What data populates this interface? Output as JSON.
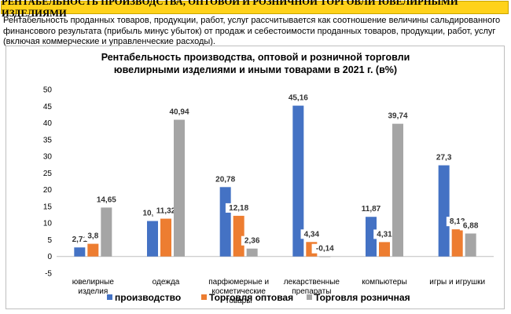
{
  "banner": "РЕНТАБЕЛЬНОСТЬ ПРОИЗВОДСТВА, ОПТОВОЙ И РОЗНИЧНОЙ ТОРГОВЛИ ЮВЕЛИРНЫМИ ИЗДЕЛИЯМИ",
  "intro": "Рентабельность проданных товаров, продукции, работ, услуг рассчитывается как соотношение величины сальдированного финансового результата (прибыль минус убыток) от продаж и себестоимости проданных товаров, продукции, работ, услуг (включая коммерческие и управленческие расходы).",
  "colors": {
    "s0": "#4472c4",
    "s1": "#ed7d31",
    "s2": "#a5a5a5",
    "banner": "#ffd21a"
  },
  "chart_data": {
    "type": "bar",
    "title": [
      "Рентабельность производства, оптовой и розничной торговли",
      "ювелирными изделиями и иными товарами в 2021 г. (в%)"
    ],
    "xlabel": "",
    "ylabel": "",
    "ylim": [
      -5,
      50
    ],
    "yticks": [
      -5,
      0,
      5,
      10,
      15,
      20,
      25,
      30,
      35,
      40,
      45,
      50
    ],
    "grid": false,
    "legend_position": "bottom",
    "categories": [
      [
        "ювелирные",
        "изделия"
      ],
      [
        "одежда"
      ],
      [
        "парфюмерные и",
        "косметические",
        "товары"
      ],
      [
        "лекарственные",
        "препараты"
      ],
      [
        "компьютеры"
      ],
      [
        "игры и игрушки"
      ]
    ],
    "series": [
      {
        "name": "производство",
        "values": [
          2.71,
          10.62,
          20.78,
          45.16,
          11.87,
          27.3
        ],
        "labels": [
          "2,71",
          "10,62",
          "20,78",
          "45,16",
          "11,87",
          "27,3"
        ]
      },
      {
        "name": "Торговля оптовая",
        "values": [
          3.8,
          11.32,
          12.18,
          4.34,
          4.31,
          8.13
        ],
        "labels": [
          "3,8",
          "11,32",
          "12,18",
          "4,34",
          "4,31",
          "8,13"
        ]
      },
      {
        "name": "Торговля  розничная",
        "values": [
          14.65,
          40.94,
          2.36,
          -0.14,
          39.74,
          6.88
        ],
        "labels": [
          "14,65",
          "40,94",
          "2,36",
          "-0,14",
          "39,74",
          "6,88"
        ]
      }
    ]
  }
}
